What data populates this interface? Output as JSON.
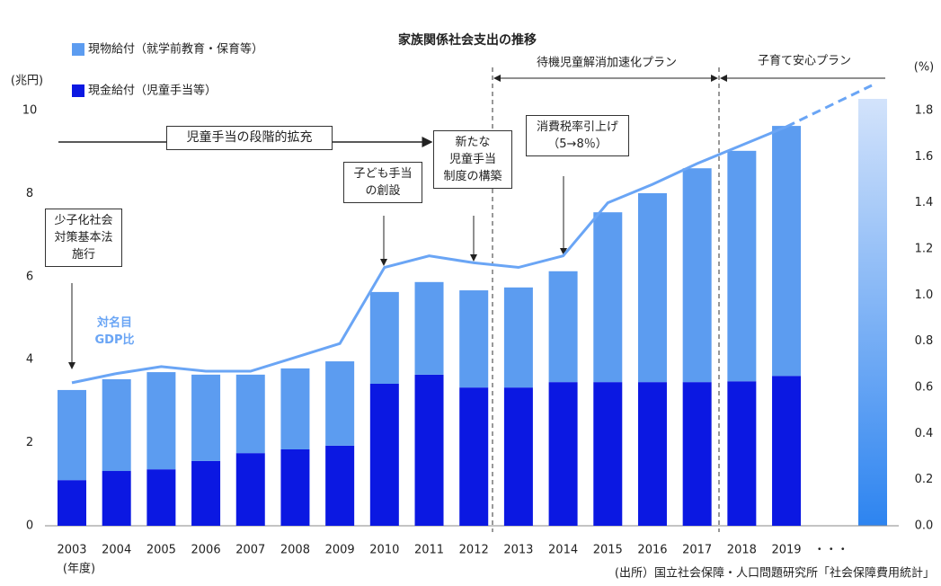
{
  "chart_data": {
    "type": "bar",
    "stacked": true,
    "title": "家族関係社会支出の推移",
    "y_label": "(兆円)",
    "y2_label": "(%)",
    "x_label": "(年度)",
    "source": "(出所）国立社会保障・人口問題研究所「社会保障費用統計」",
    "categories": [
      "2003",
      "2004",
      "2005",
      "2006",
      "2007",
      "2008",
      "2009",
      "2010",
      "2011",
      "2012",
      "2013",
      "2014",
      "2015",
      "2016",
      "2017",
      "2018",
      "2019",
      "・・・"
    ],
    "series": [
      {
        "name": "現金給付（児童手当等）",
        "color": "#0b18e2",
        "values": [
          1.1,
          1.32,
          1.36,
          1.56,
          1.75,
          1.84,
          1.93,
          3.42,
          3.64,
          3.33,
          3.33,
          3.46,
          3.46,
          3.46,
          3.46,
          3.48,
          3.61,
          null
        ]
      },
      {
        "name": "現物給付（就学前教育・保育等）",
        "color": "#5c9cf0",
        "values": [
          2.17,
          2.21,
          2.34,
          2.08,
          1.89,
          1.95,
          2.03,
          2.21,
          2.23,
          2.34,
          2.41,
          2.67,
          4.09,
          4.55,
          5.15,
          5.55,
          6.02,
          null
        ]
      },
      {
        "name": "対名目 GDP比",
        "type": "line",
        "axis": "y2",
        "color": "#6aa5f5",
        "values": [
          0.62,
          0.66,
          0.69,
          0.67,
          0.67,
          0.73,
          0.79,
          1.12,
          1.17,
          1.14,
          1.12,
          1.17,
          1.4,
          1.48,
          1.57,
          1.65,
          1.73,
          null
        ]
      }
    ],
    "ylim": [
      0,
      10
    ],
    "yticks": [
      0,
      2,
      4,
      6,
      8,
      10
    ],
    "y2lim": [
      0,
      1.8
    ],
    "y2ticks": [
      {
        "value": 0,
        "label": "0.0"
      },
      {
        "value": 0.2,
        "label": "0.2"
      },
      {
        "value": 0.4,
        "label": "0.4"
      },
      {
        "value": 0.6,
        "label": "0.6"
      },
      {
        "value": 0.8,
        "label": "0.8"
      },
      {
        "value": 1,
        "label": "1.0"
      },
      {
        "value": 1.2,
        "label": "1.2"
      },
      {
        "value": 1.4,
        "label": "1.4"
      },
      {
        "value": 1.6,
        "label": "1.6"
      },
      {
        "value": 1.8,
        "label": "1.8"
      }
    ],
    "annotations": [
      "少子化社会\n対策基本法\n施行",
      "児童手当の段階的拡充",
      "子ども手当\nの創設",
      "新たな\n児童手当\n制度の構築",
      "消費税率引上げ\n（5→8％）"
    ],
    "periods": [
      "待機児童解消加速化プラン",
      "子育て安心プラン"
    ]
  }
}
